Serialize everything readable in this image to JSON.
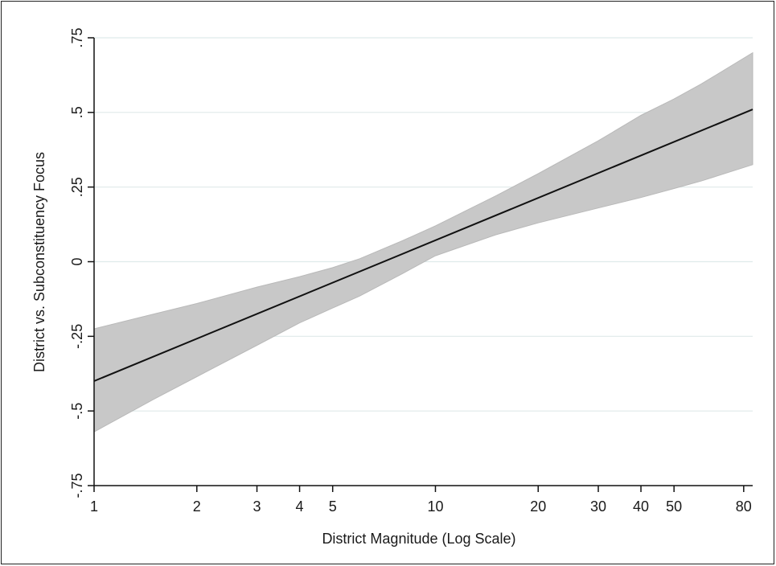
{
  "chart_data": {
    "type": "line",
    "title": "",
    "xlabel": "District Magnitude (Log Scale)",
    "ylabel": "District vs. Subconstituency Focus",
    "x_scale": "log",
    "xlim": [
      1,
      85
    ],
    "ylim": [
      -0.75,
      0.75
    ],
    "x_ticks": [
      1,
      2,
      3,
      4,
      5,
      10,
      20,
      30,
      40,
      50,
      80
    ],
    "x_tick_labels": [
      "1",
      "2",
      "3",
      "4",
      "5",
      "10",
      "20",
      "30",
      "40",
      "50",
      "80"
    ],
    "y_ticks": [
      -0.75,
      -0.5,
      -0.25,
      0,
      0.25,
      0.5,
      0.75
    ],
    "y_tick_labels": [
      "-.75",
      "-.5",
      "-.25",
      "0",
      ".25",
      ".5",
      ".75"
    ],
    "grid": "horizontal",
    "colors": {
      "band": "#c8c8c8",
      "band_edge": "#b9b9b9",
      "line": "#111111",
      "grid": "#dfeaea"
    },
    "series": [
      {
        "kind": "line",
        "x": [
          1,
          85
        ],
        "y": [
          -0.4,
          0.51
        ]
      },
      {
        "kind": "confidence-band",
        "x": [
          1,
          1.5,
          2,
          3,
          4,
          5,
          6,
          8,
          10,
          15,
          20,
          30,
          40,
          50,
          60,
          85
        ],
        "lower": [
          -0.57,
          -0.46,
          -0.385,
          -0.28,
          -0.205,
          -0.155,
          -0.115,
          -0.04,
          0.02,
          0.09,
          0.13,
          0.18,
          0.215,
          0.245,
          0.27,
          0.325
        ],
        "upper": [
          -0.225,
          -0.175,
          -0.14,
          -0.085,
          -0.05,
          -0.02,
          0.01,
          0.07,
          0.12,
          0.22,
          0.295,
          0.405,
          0.49,
          0.545,
          0.595,
          0.7
        ]
      }
    ]
  }
}
